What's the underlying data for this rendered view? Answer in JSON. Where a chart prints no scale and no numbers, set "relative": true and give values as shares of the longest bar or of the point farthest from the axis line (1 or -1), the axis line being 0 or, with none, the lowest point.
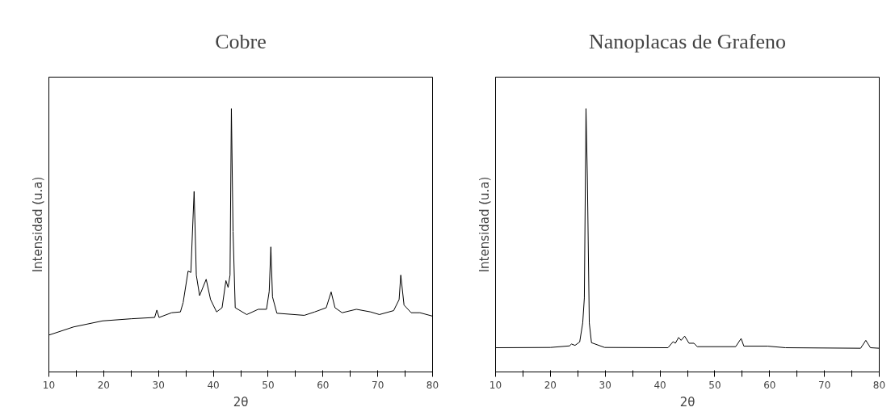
{
  "chart_data": [
    {
      "type": "line",
      "title": "Cobre",
      "xlabel": "2θ",
      "ylabel": "Intensidad (u.a)",
      "relative": true,
      "color": "#000000",
      "xlim": [
        10,
        80
      ],
      "xticks": [
        10,
        {
          "value": 15,
          "label": null
        },
        20,
        {
          "value": 25,
          "label": null
        },
        30,
        {
          "value": 35,
          "label": null
        },
        40,
        {
          "value": 45,
          "label": null
        },
        50,
        {
          "value": 55,
          "label": null
        },
        60,
        {
          "value": 65,
          "label": null
        },
        70,
        {
          "value": 75,
          "label": null
        },
        80
      ],
      "x": [
        10,
        14.5,
        19.8,
        25.05,
        29.3,
        29.7,
        30.1,
        32.4,
        34.0,
        34.5,
        35.4,
        35.9,
        36.5,
        36.9,
        37.5,
        38.7,
        39.5,
        40.6,
        41.6,
        42.3,
        42.7,
        43.05,
        43.3,
        43.6,
        44.0,
        46.1,
        48.2,
        49.7,
        50.2,
        50.5,
        50.8,
        51.6,
        56.6,
        58.5,
        60.6,
        61.5,
        62.2,
        63.5,
        66.1,
        68.7,
        70.3,
        72.9,
        73.9,
        74.2,
        74.8,
        76.1,
        77.7,
        80
      ],
      "values": [
        0.14,
        0.171,
        0.194,
        0.202,
        0.207,
        0.235,
        0.207,
        0.225,
        0.228,
        0.264,
        0.383,
        0.378,
        0.686,
        0.368,
        0.29,
        0.352,
        0.275,
        0.228,
        0.244,
        0.347,
        0.321,
        0.368,
        1.0,
        0.534,
        0.244,
        0.218,
        0.238,
        0.238,
        0.306,
        0.475,
        0.285,
        0.223,
        0.215,
        0.228,
        0.244,
        0.304,
        0.244,
        0.225,
        0.238,
        0.228,
        0.218,
        0.233,
        0.275,
        0.368,
        0.254,
        0.225,
        0.225,
        0.212
      ]
    },
    {
      "type": "line",
      "title": "Nanoplacas de Grafeno",
      "xlabel": "2θ",
      "ylabel": "Intensidad (u.a)",
      "relative": true,
      "color": "#000000",
      "xlim": [
        10,
        80
      ],
      "xticks": [
        10,
        {
          "value": 15,
          "label": null
        },
        20,
        {
          "value": 25,
          "label": null
        },
        30,
        {
          "value": 35,
          "label": null
        },
        40,
        {
          "value": 45,
          "label": null
        },
        50,
        {
          "value": 55,
          "label": null
        },
        60,
        {
          "value": 65,
          "label": null
        },
        70,
        {
          "value": 75,
          "label": null
        },
        80
      ],
      "x": [
        10,
        20.0,
        23.5,
        23.85,
        24.5,
        25.35,
        25.9,
        26.2,
        26.5,
        26.75,
        27.1,
        27.5,
        29.9,
        41.45,
        42.4,
        42.8,
        43.4,
        43.85,
        44.5,
        45.3,
        46.2,
        46.8,
        53.8,
        54.8,
        55.3,
        59.7,
        62.9,
        76.6,
        77.55,
        78.4,
        80
      ],
      "values": [
        0.092,
        0.093,
        0.099,
        0.106,
        0.101,
        0.114,
        0.186,
        0.281,
        1.0,
        0.738,
        0.186,
        0.111,
        0.093,
        0.092,
        0.115,
        0.109,
        0.131,
        0.12,
        0.136,
        0.109,
        0.109,
        0.096,
        0.096,
        0.127,
        0.098,
        0.098,
        0.092,
        0.09,
        0.12,
        0.092,
        0.09
      ]
    }
  ]
}
